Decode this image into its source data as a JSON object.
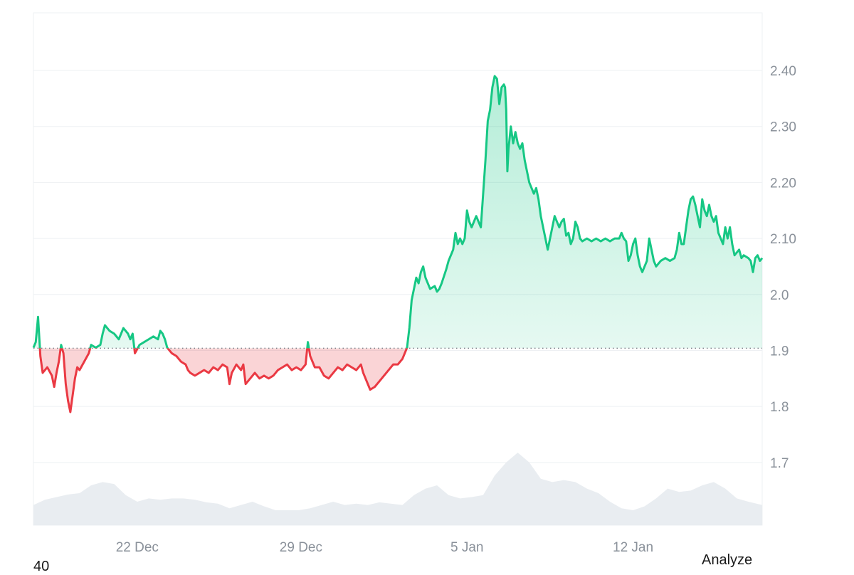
{
  "chart_data": {
    "type": "area",
    "baseline": 1.904,
    "ylim": [
      1.588,
      2.503
    ],
    "xlim": [
      0,
      31.6
    ],
    "y_ticks": [
      "2.40",
      "2.30",
      "2.20",
      "2.10",
      "2.0",
      "1.9",
      "1.8",
      "1.7"
    ],
    "y_tick_values": [
      2.4,
      2.3,
      2.2,
      2.1,
      2.0,
      1.9,
      1.8,
      1.7
    ],
    "x_ticks": [
      "22 Dec",
      "29 Dec",
      "5 Jan",
      "12 Jan"
    ],
    "x_tick_values": [
      4.5,
      11.6,
      18.8,
      26.0
    ],
    "grid": true,
    "colors": {
      "up_line": "#16c784",
      "up_fill": "#16c784",
      "down_line": "#ea3943",
      "down_fill": "#ea3943",
      "grid": "#eef0f3",
      "baseline": "#7d848c",
      "volume": "#e9edf1"
    },
    "series": [
      {
        "values": [
          [
            0.0,
            1.905
          ],
          [
            0.1,
            1.915
          ],
          [
            0.2,
            1.96
          ],
          [
            0.3,
            1.89
          ],
          [
            0.4,
            1.86
          ],
          [
            0.6,
            1.87
          ],
          [
            0.8,
            1.855
          ],
          [
            0.9,
            1.835
          ],
          [
            1.0,
            1.86
          ],
          [
            1.1,
            1.88
          ],
          [
            1.2,
            1.91
          ],
          [
            1.3,
            1.895
          ],
          [
            1.4,
            1.84
          ],
          [
            1.5,
            1.81
          ],
          [
            1.6,
            1.79
          ],
          [
            1.7,
            1.82
          ],
          [
            1.8,
            1.85
          ],
          [
            1.9,
            1.87
          ],
          [
            2.0,
            1.865
          ],
          [
            2.2,
            1.88
          ],
          [
            2.4,
            1.895
          ],
          [
            2.5,
            1.91
          ],
          [
            2.7,
            1.905
          ],
          [
            2.9,
            1.91
          ],
          [
            3.0,
            1.93
          ],
          [
            3.1,
            1.945
          ],
          [
            3.3,
            1.935
          ],
          [
            3.5,
            1.93
          ],
          [
            3.7,
            1.92
          ],
          [
            3.9,
            1.94
          ],
          [
            4.1,
            1.93
          ],
          [
            4.2,
            1.92
          ],
          [
            4.3,
            1.93
          ],
          [
            4.4,
            1.895
          ],
          [
            4.6,
            1.91
          ],
          [
            4.8,
            1.915
          ],
          [
            5.0,
            1.92
          ],
          [
            5.2,
            1.925
          ],
          [
            5.4,
            1.92
          ],
          [
            5.5,
            1.935
          ],
          [
            5.6,
            1.93
          ],
          [
            5.7,
            1.92
          ],
          [
            5.8,
            1.905
          ],
          [
            6.0,
            1.895
          ],
          [
            6.2,
            1.89
          ],
          [
            6.4,
            1.88
          ],
          [
            6.6,
            1.875
          ],
          [
            6.7,
            1.865
          ],
          [
            6.8,
            1.86
          ],
          [
            7.0,
            1.855
          ],
          [
            7.2,
            1.86
          ],
          [
            7.4,
            1.865
          ],
          [
            7.6,
            1.86
          ],
          [
            7.8,
            1.87
          ],
          [
            8.0,
            1.865
          ],
          [
            8.2,
            1.875
          ],
          [
            8.4,
            1.87
          ],
          [
            8.5,
            1.84
          ],
          [
            8.6,
            1.86
          ],
          [
            8.8,
            1.875
          ],
          [
            9.0,
            1.865
          ],
          [
            9.1,
            1.875
          ],
          [
            9.2,
            1.84
          ],
          [
            9.4,
            1.85
          ],
          [
            9.6,
            1.86
          ],
          [
            9.8,
            1.85
          ],
          [
            10.0,
            1.855
          ],
          [
            10.2,
            1.85
          ],
          [
            10.4,
            1.855
          ],
          [
            10.6,
            1.865
          ],
          [
            10.8,
            1.87
          ],
          [
            11.0,
            1.875
          ],
          [
            11.2,
            1.865
          ],
          [
            11.4,
            1.87
          ],
          [
            11.6,
            1.865
          ],
          [
            11.8,
            1.875
          ],
          [
            11.9,
            1.915
          ],
          [
            12.0,
            1.89
          ],
          [
            12.2,
            1.87
          ],
          [
            12.4,
            1.87
          ],
          [
            12.6,
            1.855
          ],
          [
            12.8,
            1.85
          ],
          [
            13.0,
            1.86
          ],
          [
            13.2,
            1.87
          ],
          [
            13.4,
            1.865
          ],
          [
            13.6,
            1.875
          ],
          [
            13.8,
            1.87
          ],
          [
            14.0,
            1.865
          ],
          [
            14.2,
            1.875
          ],
          [
            14.3,
            1.86
          ],
          [
            14.5,
            1.84
          ],
          [
            14.6,
            1.83
          ],
          [
            14.8,
            1.835
          ],
          [
            15.0,
            1.845
          ],
          [
            15.2,
            1.855
          ],
          [
            15.4,
            1.865
          ],
          [
            15.6,
            1.875
          ],
          [
            15.8,
            1.875
          ],
          [
            16.0,
            1.885
          ],
          [
            16.2,
            1.905
          ],
          [
            16.3,
            1.94
          ],
          [
            16.4,
            1.99
          ],
          [
            16.5,
            2.01
          ],
          [
            16.6,
            2.03
          ],
          [
            16.7,
            2.02
          ],
          [
            16.8,
            2.04
          ],
          [
            16.9,
            2.05
          ],
          [
            17.0,
            2.03
          ],
          [
            17.1,
            2.02
          ],
          [
            17.2,
            2.01
          ],
          [
            17.4,
            2.015
          ],
          [
            17.5,
            2.005
          ],
          [
            17.6,
            2.01
          ],
          [
            17.7,
            2.02
          ],
          [
            17.9,
            2.045
          ],
          [
            18.0,
            2.06
          ],
          [
            18.1,
            2.07
          ],
          [
            18.2,
            2.08
          ],
          [
            18.3,
            2.11
          ],
          [
            18.4,
            2.09
          ],
          [
            18.5,
            2.1
          ],
          [
            18.6,
            2.09
          ],
          [
            18.7,
            2.1
          ],
          [
            18.8,
            2.15
          ],
          [
            18.9,
            2.13
          ],
          [
            19.0,
            2.12
          ],
          [
            19.2,
            2.14
          ],
          [
            19.3,
            2.13
          ],
          [
            19.4,
            2.12
          ],
          [
            19.5,
            2.18
          ],
          [
            19.6,
            2.24
          ],
          [
            19.7,
            2.31
          ],
          [
            19.8,
            2.33
          ],
          [
            19.9,
            2.37
          ],
          [
            20.0,
            2.39
          ],
          [
            20.1,
            2.385
          ],
          [
            20.2,
            2.34
          ],
          [
            20.3,
            2.37
          ],
          [
            20.4,
            2.375
          ],
          [
            20.45,
            2.37
          ],
          [
            20.5,
            2.33
          ],
          [
            20.55,
            2.22
          ],
          [
            20.6,
            2.26
          ],
          [
            20.7,
            2.3
          ],
          [
            20.8,
            2.27
          ],
          [
            20.9,
            2.29
          ],
          [
            21.0,
            2.27
          ],
          [
            21.1,
            2.26
          ],
          [
            21.2,
            2.27
          ],
          [
            21.3,
            2.24
          ],
          [
            21.4,
            2.22
          ],
          [
            21.5,
            2.2
          ],
          [
            21.6,
            2.19
          ],
          [
            21.7,
            2.18
          ],
          [
            21.8,
            2.19
          ],
          [
            21.9,
            2.17
          ],
          [
            22.0,
            2.14
          ],
          [
            22.1,
            2.12
          ],
          [
            22.2,
            2.1
          ],
          [
            22.3,
            2.08
          ],
          [
            22.4,
            2.1
          ],
          [
            22.5,
            2.12
          ],
          [
            22.6,
            2.14
          ],
          [
            22.7,
            2.13
          ],
          [
            22.8,
            2.12
          ],
          [
            22.9,
            2.13
          ],
          [
            23.0,
            2.135
          ],
          [
            23.1,
            2.105
          ],
          [
            23.2,
            2.11
          ],
          [
            23.3,
            2.09
          ],
          [
            23.4,
            2.1
          ],
          [
            23.5,
            2.13
          ],
          [
            23.6,
            2.12
          ],
          [
            23.7,
            2.1
          ],
          [
            23.8,
            2.095
          ],
          [
            24.0,
            2.1
          ],
          [
            24.2,
            2.095
          ],
          [
            24.4,
            2.1
          ],
          [
            24.6,
            2.095
          ],
          [
            24.8,
            2.1
          ],
          [
            25.0,
            2.095
          ],
          [
            25.2,
            2.1
          ],
          [
            25.4,
            2.1
          ],
          [
            25.5,
            2.11
          ],
          [
            25.6,
            2.1
          ],
          [
            25.7,
            2.095
          ],
          [
            25.8,
            2.06
          ],
          [
            25.9,
            2.07
          ],
          [
            26.0,
            2.09
          ],
          [
            26.1,
            2.1
          ],
          [
            26.2,
            2.07
          ],
          [
            26.3,
            2.05
          ],
          [
            26.4,
            2.04
          ],
          [
            26.5,
            2.05
          ],
          [
            26.6,
            2.06
          ],
          [
            26.7,
            2.1
          ],
          [
            26.8,
            2.08
          ],
          [
            26.9,
            2.06
          ],
          [
            27.0,
            2.05
          ],
          [
            27.2,
            2.06
          ],
          [
            27.4,
            2.065
          ],
          [
            27.6,
            2.06
          ],
          [
            27.8,
            2.065
          ],
          [
            27.9,
            2.08
          ],
          [
            28.0,
            2.11
          ],
          [
            28.1,
            2.09
          ],
          [
            28.2,
            2.09
          ],
          [
            28.3,
            2.12
          ],
          [
            28.4,
            2.15
          ],
          [
            28.5,
            2.17
          ],
          [
            28.6,
            2.175
          ],
          [
            28.7,
            2.16
          ],
          [
            28.8,
            2.14
          ],
          [
            28.9,
            2.12
          ],
          [
            29.0,
            2.17
          ],
          [
            29.1,
            2.15
          ],
          [
            29.2,
            2.14
          ],
          [
            29.3,
            2.16
          ],
          [
            29.4,
            2.14
          ],
          [
            29.5,
            2.13
          ],
          [
            29.6,
            2.14
          ],
          [
            29.7,
            2.11
          ],
          [
            29.8,
            2.1
          ],
          [
            29.9,
            2.09
          ],
          [
            30.0,
            2.12
          ],
          [
            30.1,
            2.1
          ],
          [
            30.2,
            2.12
          ],
          [
            30.3,
            2.09
          ],
          [
            30.4,
            2.07
          ],
          [
            30.6,
            2.08
          ],
          [
            30.7,
            2.065
          ],
          [
            30.8,
            2.07
          ],
          [
            31.0,
            2.065
          ],
          [
            31.1,
            2.06
          ],
          [
            31.2,
            2.04
          ],
          [
            31.3,
            2.065
          ],
          [
            31.4,
            2.07
          ],
          [
            31.5,
            2.06
          ],
          [
            31.6,
            2.065
          ]
        ]
      }
    ],
    "volume": [
      [
        0.0,
        0.2
      ],
      [
        0.5,
        0.28
      ],
      [
        1.0,
        0.32
      ],
      [
        1.5,
        0.36
      ],
      [
        2.0,
        0.38
      ],
      [
        2.5,
        0.5
      ],
      [
        3.0,
        0.55
      ],
      [
        3.5,
        0.52
      ],
      [
        4.0,
        0.35
      ],
      [
        4.5,
        0.25
      ],
      [
        5.0,
        0.3
      ],
      [
        5.5,
        0.28
      ],
      [
        6.0,
        0.3
      ],
      [
        6.5,
        0.3
      ],
      [
        7.0,
        0.28
      ],
      [
        7.5,
        0.24
      ],
      [
        8.0,
        0.22
      ],
      [
        8.5,
        0.15
      ],
      [
        9.0,
        0.2
      ],
      [
        9.5,
        0.25
      ],
      [
        10.0,
        0.18
      ],
      [
        10.5,
        0.12
      ],
      [
        11.0,
        0.12
      ],
      [
        11.5,
        0.12
      ],
      [
        12.0,
        0.15
      ],
      [
        12.5,
        0.2
      ],
      [
        13.0,
        0.25
      ],
      [
        13.5,
        0.2
      ],
      [
        14.0,
        0.22
      ],
      [
        14.5,
        0.2
      ],
      [
        15.0,
        0.24
      ],
      [
        15.5,
        0.22
      ],
      [
        16.0,
        0.2
      ],
      [
        16.5,
        0.35
      ],
      [
        17.0,
        0.45
      ],
      [
        17.5,
        0.5
      ],
      [
        18.0,
        0.35
      ],
      [
        18.5,
        0.3
      ],
      [
        19.0,
        0.32
      ],
      [
        19.5,
        0.35
      ],
      [
        20.0,
        0.65
      ],
      [
        20.5,
        0.85
      ],
      [
        21.0,
        1.0
      ],
      [
        21.5,
        0.85
      ],
      [
        22.0,
        0.6
      ],
      [
        22.5,
        0.55
      ],
      [
        23.0,
        0.58
      ],
      [
        23.5,
        0.55
      ],
      [
        24.0,
        0.45
      ],
      [
        24.5,
        0.38
      ],
      [
        25.0,
        0.25
      ],
      [
        25.5,
        0.15
      ],
      [
        26.0,
        0.12
      ],
      [
        26.5,
        0.18
      ],
      [
        27.0,
        0.3
      ],
      [
        27.5,
        0.45
      ],
      [
        28.0,
        0.4
      ],
      [
        28.5,
        0.42
      ],
      [
        29.0,
        0.5
      ],
      [
        29.5,
        0.55
      ],
      [
        30.0,
        0.45
      ],
      [
        30.5,
        0.3
      ],
      [
        31.0,
        0.25
      ],
      [
        31.6,
        0.2
      ]
    ]
  },
  "footer": {
    "analyze_label": "Analyze",
    "bottom_left_label": "40"
  }
}
